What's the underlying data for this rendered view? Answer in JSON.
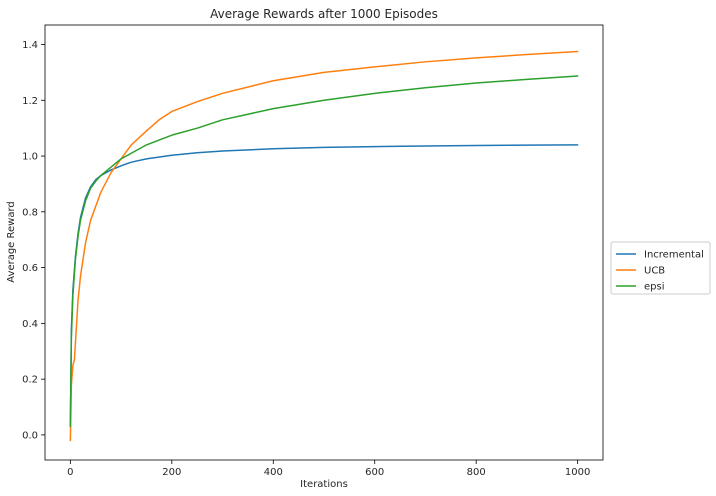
{
  "chart_data": {
    "type": "line",
    "title": "Average Rewards after 1000 Episodes",
    "xlabel": "Iterations",
    "ylabel": "Average Reward",
    "xlim": [
      -50,
      1050
    ],
    "ylim": [
      -0.09,
      1.47
    ],
    "xticks": [
      0,
      200,
      400,
      600,
      800,
      1000
    ],
    "yticks": [
      0.0,
      0.2,
      0.4,
      0.6,
      0.8,
      1.0,
      1.2,
      1.4
    ],
    "xtick_labels": [
      "0",
      "200",
      "400",
      "600",
      "800",
      "1000"
    ],
    "ytick_labels": [
      "0.0",
      "0.2",
      "0.4",
      "0.6",
      "0.8",
      "1.0",
      "1.2",
      "1.4"
    ],
    "grid": false,
    "legend_position": "right-outside",
    "series": [
      {
        "name": "Incremental",
        "color": "#1f77b4",
        "x": [
          0,
          2,
          5,
          10,
          15,
          20,
          30,
          40,
          50,
          60,
          80,
          100,
          120,
          150,
          200,
          250,
          300,
          400,
          500,
          600,
          700,
          800,
          900,
          1000
        ],
        "y": [
          0.03,
          0.38,
          0.52,
          0.64,
          0.72,
          0.78,
          0.85,
          0.89,
          0.915,
          0.93,
          0.95,
          0.965,
          0.978,
          0.99,
          1.003,
          1.012,
          1.018,
          1.026,
          1.031,
          1.034,
          1.036,
          1.038,
          1.039,
          1.04
        ]
      },
      {
        "name": "UCB",
        "color": "#ff7f0e",
        "x": [
          0,
          2,
          5,
          8,
          10,
          15,
          20,
          30,
          40,
          50,
          60,
          80,
          100,
          120,
          150,
          175,
          200,
          250,
          300,
          400,
          500,
          600,
          700,
          800,
          900,
          1000
        ],
        "y": [
          -0.02,
          0.18,
          0.25,
          0.27,
          0.33,
          0.48,
          0.57,
          0.69,
          0.77,
          0.82,
          0.87,
          0.94,
          0.99,
          1.04,
          1.09,
          1.13,
          1.16,
          1.195,
          1.225,
          1.27,
          1.3,
          1.32,
          1.338,
          1.352,
          1.364,
          1.375
        ]
      },
      {
        "name": "epsi",
        "color": "#2ca02c",
        "x": [
          0,
          2,
          5,
          10,
          15,
          20,
          30,
          40,
          50,
          60,
          80,
          100,
          120,
          150,
          200,
          250,
          300,
          400,
          500,
          600,
          700,
          800,
          900,
          1000
        ],
        "y": [
          0.03,
          0.35,
          0.5,
          0.63,
          0.71,
          0.77,
          0.84,
          0.885,
          0.91,
          0.93,
          0.96,
          0.99,
          1.01,
          1.04,
          1.075,
          1.1,
          1.13,
          1.17,
          1.2,
          1.225,
          1.245,
          1.262,
          1.275,
          1.287
        ]
      }
    ]
  }
}
